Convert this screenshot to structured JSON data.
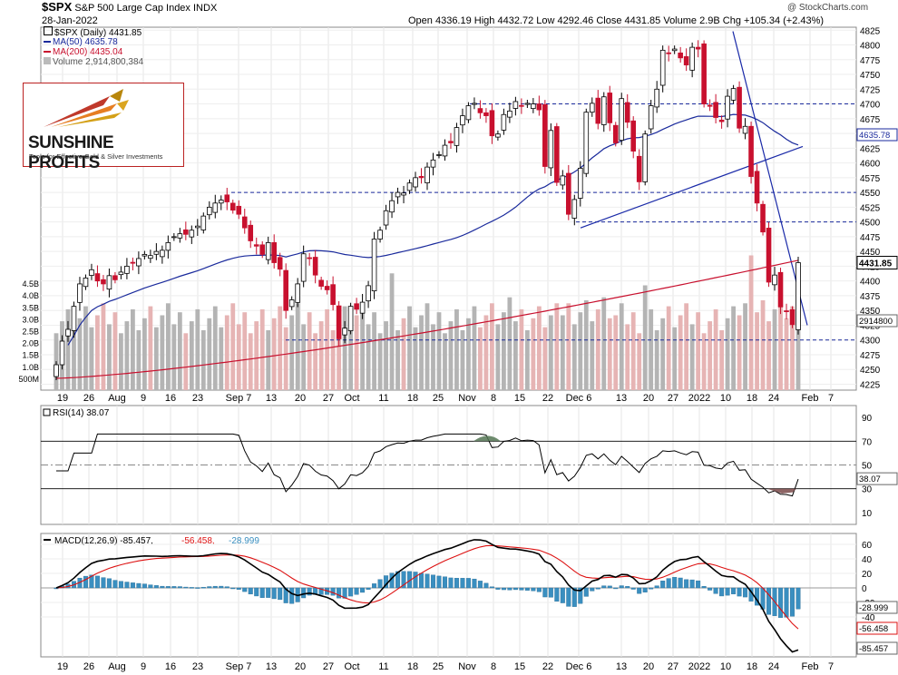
{
  "header": {
    "symbol": "$SPX",
    "name": "S&P 500 Large Cap Index",
    "exchange": "INDX",
    "date": "28-Jan-2022",
    "copyright": "@ StockCharts.com",
    "ohlc": "Open 4336.19  High 4432.72  Low 4292.46  Close 4431.85  Volume 2.9B  Chg +105.34 (+2.43%)"
  },
  "legend": {
    "price": "$SPX (Daily) 4431.85",
    "ma50": "MA(50) 4635.78",
    "ma200": "MA(200) 4435.04",
    "volume": "Volume 2,914,800,384"
  },
  "logo": {
    "name": "SUNSHINE PROFITS",
    "tagline": "Tools for Effective Gold & Silver Investments"
  },
  "colors": {
    "up": "#ffffff",
    "down": "#c8102e",
    "ma50": "#1a2a9c",
    "ma200": "#c8102e",
    "trend": "#1a2aa8",
    "vol_up": "#b4b4b4",
    "vol_down": "#e6b4b4",
    "rsi": "#000000",
    "macd": "#000000",
    "signal": "#dd1111",
    "histogram": "#3a8fc0"
  },
  "chart_data": [
    {
      "type": "candlestick",
      "title": "$SPX (Daily) 4431.85",
      "ylim": [
        4215,
        4830
      ],
      "y_ticks": [
        4225,
        4250,
        4275,
        4300,
        4325,
        4350,
        4375,
        4400,
        4425,
        4450,
        4475,
        4500,
        4525,
        4550,
        4575,
        4600,
        4625,
        4650,
        4675,
        4700,
        4725,
        4750,
        4775,
        4800,
        4825
      ],
      "x_tick_labels": [
        "19",
        "26",
        "Aug",
        "9",
        "16",
        "23",
        "Sep 7",
        "13",
        "20",
        "27",
        "Oct",
        "11",
        "18",
        "25",
        "Nov",
        "8",
        "15",
        "22",
        "Dec 6",
        "13",
        "20",
        "27",
        "2022",
        "10",
        "18",
        "24",
        "Feb",
        "7"
      ],
      "close_series": [
        4258,
        4298,
        4318,
        4357,
        4395,
        4405,
        4419,
        4400,
        4395,
        4409,
        4402,
        4415,
        4425,
        4430,
        4438,
        4445,
        4443,
        4450,
        4452,
        4465,
        4475,
        4480,
        4479,
        4486,
        4493,
        4510,
        4525,
        4532,
        4537,
        4534,
        4520,
        4513,
        4490,
        4468,
        4459,
        4445,
        4465,
        4431,
        4420,
        4350,
        4368,
        4395,
        4446,
        4438,
        4410,
        4391,
        4385,
        4360,
        4302,
        4320,
        4357,
        4352,
        4364,
        4392,
        4471,
        4486,
        4519,
        4536,
        4550,
        4549,
        4566,
        4575,
        4575,
        4593,
        4605,
        4614,
        4630,
        4634,
        4660,
        4680,
        4697,
        4701,
        4685,
        4680,
        4646,
        4649,
        4682,
        4688,
        4704,
        4697,
        4701,
        4700,
        4690,
        4594,
        4655,
        4567,
        4578,
        4513,
        4538,
        4591,
        4686,
        4701,
        4667,
        4712,
        4668,
        4634,
        4709,
        4669,
        4620,
        4568,
        4649,
        4697,
        4725,
        4791,
        4786,
        4793,
        4778,
        4766,
        4796,
        4793,
        4700,
        4696,
        4677,
        4670,
        4713,
        4726,
        4659,
        4662,
        4577,
        4532,
        4483,
        4398,
        4410,
        4356,
        4349,
        4326,
        4431
      ],
      "last_price_label": "4431.85",
      "volume_tick_labels": [
        "500M",
        "1.0B",
        "1.5B",
        "2.0B",
        "2.5B",
        "3.0B",
        "3.5B",
        "4.0B",
        "4.5B"
      ],
      "volume_label": "2914800"
    },
    {
      "type": "line",
      "title": "RSI(14) 38.07",
      "ylim": [
        0,
        100
      ],
      "y_ticks": [
        10,
        30,
        50,
        70,
        90
      ],
      "reference_lines": [
        70,
        50,
        30
      ],
      "last_value_label": "38.07"
    },
    {
      "type": "line",
      "title": "MACD(12,26,9) -85.457, -56.458, -28.999",
      "y_ticks": [
        60,
        40,
        20,
        0,
        -20,
        -40
      ],
      "series": [
        {
          "name": "MACD",
          "last": -85.457
        },
        {
          "name": "Signal",
          "last": -56.458
        },
        {
          "name": "Histogram",
          "last": -28.999
        }
      ],
      "value_labels": [
        "-28.999",
        "-56.458",
        "-85.457"
      ]
    }
  ]
}
